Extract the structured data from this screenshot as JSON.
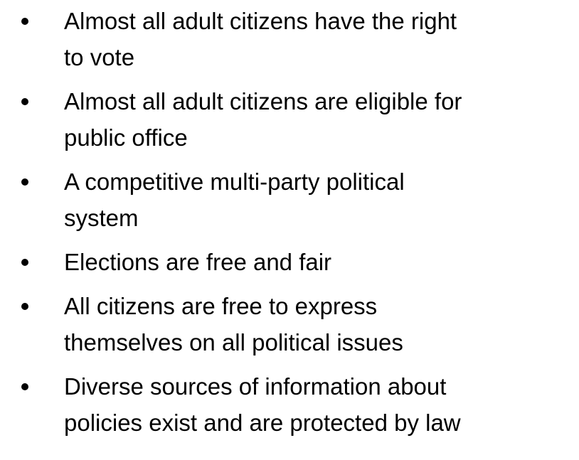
{
  "bullets": [
    {
      "lines": [
        "Almost all adult citizens have the right",
        "to vote"
      ]
    },
    {
      "lines": [
        "Almost all adult citizens are eligible for",
        "public office"
      ]
    },
    {
      "lines": [
        "A competitive multi-party political",
        "system"
      ]
    },
    {
      "lines": [
        "Elections are free and fair"
      ]
    },
    {
      "lines": [
        "All citizens are free to express",
        "themselves on all political issues"
      ]
    },
    {
      "lines": [
        "Diverse sources of information about",
        "policies exist and are protected by law"
      ]
    }
  ]
}
